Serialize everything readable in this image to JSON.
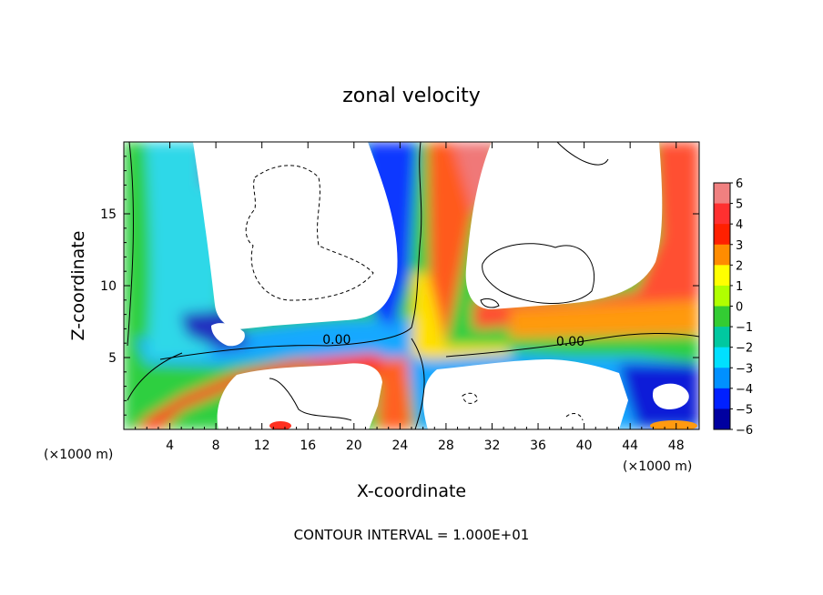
{
  "chart_data": {
    "type": "heatmap",
    "title": "zonal velocity",
    "xlabel": "X-coordinate",
    "ylabel": "Z-coordinate",
    "x_unit_label": "(×1000 m)",
    "x_unit_label_right": "(×1000 m)",
    "xlim": [
      0,
      50
    ],
    "ylim": [
      0,
      20
    ],
    "x_ticks": [
      "4",
      "8",
      "12",
      "16",
      "20",
      "24",
      "28",
      "32",
      "36",
      "40",
      "44",
      "48"
    ],
    "y_ticks": [
      "5",
      "10",
      "15"
    ],
    "x_tick_values": [
      4,
      8,
      12,
      16,
      20,
      24,
      28,
      32,
      36,
      40,
      44,
      48
    ],
    "y_tick_values": [
      5,
      10,
      15
    ],
    "colorbar": {
      "labels": [
        "6",
        "5",
        "4",
        "3",
        "2",
        "1",
        "0",
        "-1",
        "-2",
        "-3",
        "-4",
        "-5",
        "-6"
      ],
      "values": [
        6,
        5,
        4,
        3,
        2,
        1,
        0,
        -1,
        -2,
        -3,
        -4,
        -5,
        -6
      ],
      "colors": [
        "#f08080",
        "#ff3030",
        "#ff2000",
        "#ff8c00",
        "#ffff00",
        "#b0ff00",
        "#33cc33",
        "#00c8a0",
        "#00e0ff",
        "#0090ff",
        "#0020ff",
        "#0000a0",
        "#8000a0"
      ]
    },
    "contour_labels": [
      "0.00",
      "0.00"
    ],
    "contour_label_positions": [
      [
        18.5,
        6.0
      ],
      [
        38.8,
        5.9
      ]
    ],
    "contour_interval_text": "CONTOUR INTERVAL = 1.000E+01",
    "out_of_range_color": "#ffffff",
    "grid": false
  }
}
